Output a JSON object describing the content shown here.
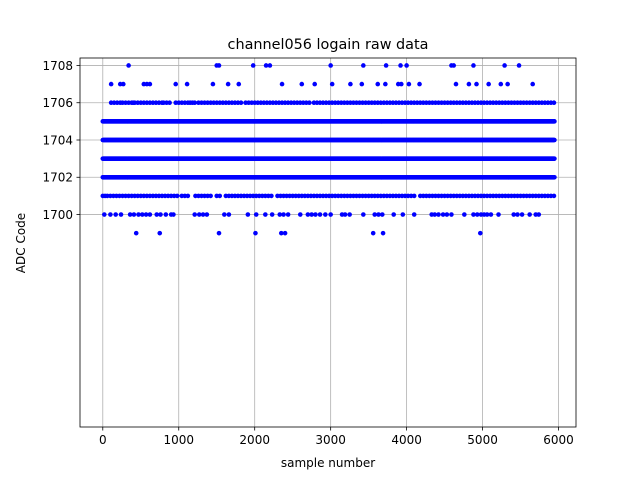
{
  "chart_data": {
    "type": "scatter",
    "title": "channel056 logain raw data",
    "xlabel": "sample number",
    "ylabel": "ADC Code",
    "xlim": [
      -300,
      6230
    ],
    "ylim": [
      1688.6,
      1708.4
    ],
    "x_ticks": [
      0,
      1000,
      2000,
      3000,
      4000,
      5000,
      6000
    ],
    "y_ticks": [
      1700,
      1702,
      1704,
      1706,
      1708
    ],
    "grid": true,
    "marker_color": "#0000ff",
    "dense_levels": [
      1702,
      1703,
      1704,
      1705
    ],
    "dense_range": [
      0,
      5950
    ],
    "medium_level_1706": [
      110,
      150,
      190,
      230,
      260,
      300,
      340,
      380,
      400,
      420,
      460,
      500,
      540,
      580,
      620,
      660,
      700,
      740,
      780,
      800,
      840,
      880,
      960,
      1000,
      1040,
      1080,
      1120,
      1150,
      1180,
      1210,
      1260,
      1300,
      1340,
      1380,
      1420,
      1460,
      1500,
      1540,
      1580,
      1620,
      1660,
      1700,
      1740,
      1780,
      1820,
      1880,
      1920,
      1960,
      2000,
      2040,
      2080,
      2120,
      2160,
      2200,
      2240,
      2280,
      2320,
      2360,
      2400,
      2440,
      2480,
      2520,
      2560,
      2600,
      2640,
      2680,
      2720,
      2780,
      2820,
      2860,
      2900,
      2940,
      2980,
      3020,
      3060,
      3100,
      3140,
      3180,
      3220,
      3260,
      3300,
      3340,
      3380,
      3420,
      3460,
      3500,
      3540,
      3580,
      3620,
      3660,
      3700,
      3740,
      3780,
      3820,
      3860,
      3900,
      3940,
      3980,
      4020,
      4060,
      4100,
      4140,
      4180,
      4220,
      4260,
      4300,
      4340,
      4380,
      4420,
      4460,
      4500,
      4540,
      4580,
      4620,
      4660,
      4700,
      4740,
      4780,
      4820,
      4860,
      4900,
      4940,
      4980,
      5020,
      5060,
      5100,
      5140,
      5180,
      5220,
      5260,
      5300,
      5340,
      5380,
      5420,
      5460,
      5500,
      5540,
      5580,
      5620,
      5660,
      5700,
      5740,
      5780,
      5820,
      5860,
      5900,
      5940
    ],
    "medium_level_1701": [
      0,
      30,
      60,
      100,
      140,
      180,
      220,
      260,
      300,
      340,
      380,
      420,
      460,
      500,
      540,
      580,
      620,
      660,
      700,
      740,
      780,
      820,
      860,
      900,
      940,
      980,
      1040,
      1080,
      1120,
      1220,
      1260,
      1300,
      1340,
      1380,
      1420,
      1500,
      1540,
      1620,
      1660,
      1700,
      1740,
      1780,
      1820,
      1860,
      1900,
      1940,
      1980,
      2020,
      2060,
      2100,
      2140,
      2180,
      2220,
      2300,
      2340,
      2380,
      2420,
      2460,
      2500,
      2540,
      2580,
      2620,
      2660,
      2700,
      2740,
      2780,
      2820,
      2860,
      2900,
      2940,
      2980,
      3020,
      3060,
      3100,
      3140,
      3180,
      3220,
      3260,
      3300,
      3340,
      3380,
      3420,
      3460,
      3500,
      3540,
      3580,
      3620,
      3660,
      3700,
      3740,
      3780,
      3820,
      3860,
      3900,
      3940,
      3980,
      4020,
      4060,
      4100,
      4180,
      4220,
      4260,
      4300,
      4340,
      4380,
      4420,
      4460,
      4500,
      4540,
      4580,
      4620,
      4660,
      4700,
      4740,
      4780,
      4820,
      4860,
      4900,
      4940,
      4980,
      5020,
      5060,
      5100,
      5140,
      5180,
      5220,
      5260,
      5300,
      5340,
      5380,
      5420,
      5460,
      5500,
      5540,
      5580,
      5620,
      5660,
      5700,
      5740,
      5780,
      5820,
      5860,
      5900,
      5940
    ],
    "sparse_points": [
      [
        340,
        1708
      ],
      [
        1500,
        1708
      ],
      [
        1530,
        1708
      ],
      [
        1980,
        1708
      ],
      [
        2150,
        1708
      ],
      [
        2200,
        1708
      ],
      [
        3000,
        1708
      ],
      [
        3430,
        1708
      ],
      [
        3730,
        1708
      ],
      [
        3920,
        1708
      ],
      [
        4000,
        1708
      ],
      [
        4590,
        1708
      ],
      [
        4620,
        1708
      ],
      [
        4880,
        1708
      ],
      [
        5290,
        1708
      ],
      [
        5480,
        1708
      ],
      [
        110,
        1707
      ],
      [
        230,
        1707
      ],
      [
        270,
        1707
      ],
      [
        540,
        1707
      ],
      [
        580,
        1707
      ],
      [
        620,
        1707
      ],
      [
        960,
        1707
      ],
      [
        1110,
        1707
      ],
      [
        1450,
        1707
      ],
      [
        1650,
        1707
      ],
      [
        1790,
        1707
      ],
      [
        2360,
        1707
      ],
      [
        2620,
        1707
      ],
      [
        2790,
        1707
      ],
      [
        3020,
        1707
      ],
      [
        3260,
        1707
      ],
      [
        3410,
        1707
      ],
      [
        3620,
        1707
      ],
      [
        3720,
        1707
      ],
      [
        3890,
        1707
      ],
      [
        3930,
        1707
      ],
      [
        4030,
        1707
      ],
      [
        4170,
        1707
      ],
      [
        4650,
        1707
      ],
      [
        4820,
        1707
      ],
      [
        4920,
        1707
      ],
      [
        5080,
        1707
      ],
      [
        5240,
        1707
      ],
      [
        5330,
        1707
      ],
      [
        5660,
        1707
      ],
      [
        20,
        1700
      ],
      [
        100,
        1700
      ],
      [
        170,
        1700
      ],
      [
        240,
        1700
      ],
      [
        360,
        1700
      ],
      [
        410,
        1700
      ],
      [
        470,
        1700
      ],
      [
        520,
        1700
      ],
      [
        570,
        1700
      ],
      [
        620,
        1700
      ],
      [
        710,
        1700
      ],
      [
        760,
        1700
      ],
      [
        830,
        1700
      ],
      [
        900,
        1700
      ],
      [
        930,
        1700
      ],
      [
        1210,
        1700
      ],
      [
        1270,
        1700
      ],
      [
        1320,
        1700
      ],
      [
        1370,
        1700
      ],
      [
        1600,
        1700
      ],
      [
        1660,
        1700
      ],
      [
        1910,
        1700
      ],
      [
        2020,
        1700
      ],
      [
        2140,
        1700
      ],
      [
        2230,
        1700
      ],
      [
        2330,
        1700
      ],
      [
        2380,
        1700
      ],
      [
        2440,
        1700
      ],
      [
        2600,
        1700
      ],
      [
        2700,
        1700
      ],
      [
        2750,
        1700
      ],
      [
        2800,
        1700
      ],
      [
        2860,
        1700
      ],
      [
        2930,
        1700
      ],
      [
        3000,
        1700
      ],
      [
        3150,
        1700
      ],
      [
        3190,
        1700
      ],
      [
        3250,
        1700
      ],
      [
        3430,
        1700
      ],
      [
        3580,
        1700
      ],
      [
        3630,
        1700
      ],
      [
        3680,
        1700
      ],
      [
        3830,
        1700
      ],
      [
        3950,
        1700
      ],
      [
        4100,
        1700
      ],
      [
        4330,
        1700
      ],
      [
        4370,
        1700
      ],
      [
        4420,
        1700
      ],
      [
        4480,
        1700
      ],
      [
        4530,
        1700
      ],
      [
        4590,
        1700
      ],
      [
        4760,
        1700
      ],
      [
        4880,
        1700
      ],
      [
        4930,
        1700
      ],
      [
        4980,
        1700
      ],
      [
        5020,
        1700
      ],
      [
        5060,
        1700
      ],
      [
        5110,
        1700
      ],
      [
        5210,
        1700
      ],
      [
        5410,
        1700
      ],
      [
        5460,
        1700
      ],
      [
        5520,
        1700
      ],
      [
        5620,
        1700
      ],
      [
        5700,
        1700
      ],
      [
        5740,
        1700
      ],
      [
        440,
        1699
      ],
      [
        750,
        1699
      ],
      [
        1530,
        1699
      ],
      [
        2010,
        1699
      ],
      [
        2350,
        1699
      ],
      [
        2400,
        1699
      ],
      [
        3560,
        1699
      ],
      [
        3690,
        1699
      ],
      [
        4970,
        1699
      ]
    ]
  }
}
